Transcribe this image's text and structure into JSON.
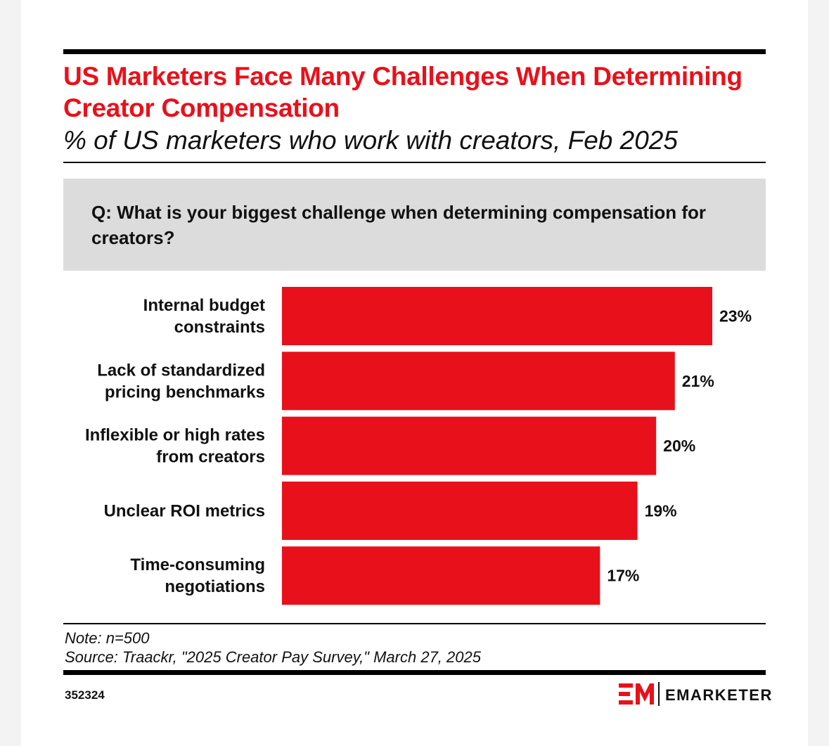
{
  "header": {
    "title": "US Marketers Face Many Challenges When Determining Creator Compensation",
    "subtitle": "% of US marketers who work with creators, Feb 2025"
  },
  "question": "Q: What is your biggest challenge when determining compensation for creators?",
  "chart_data": {
    "type": "bar",
    "orientation": "horizontal",
    "categories": [
      [
        "Internal budget",
        "constraints"
      ],
      [
        "Lack of standardized",
        "pricing benchmarks"
      ],
      [
        "Inflexible or high rates",
        "from creators"
      ],
      [
        "Unclear ROI metrics"
      ],
      [
        "Time-consuming",
        "negotiations"
      ]
    ],
    "values": [
      23,
      21,
      20,
      19,
      17
    ],
    "value_labels": [
      "23%",
      "21%",
      "20%",
      "19%",
      "17%"
    ],
    "bar_color": "#e8111b",
    "grid": false
  },
  "footer": {
    "note": "Note: n=500",
    "source": "Source: Traackr, \"2025 Creator Pay Survey,\" March 27, 2025",
    "chart_id": "352324",
    "logo_text": "EMARKETER",
    "logo_icon": "em-logo-icon"
  },
  "colors": {
    "accent": "#e8111b",
    "question_bg": "#dcdcdc"
  }
}
